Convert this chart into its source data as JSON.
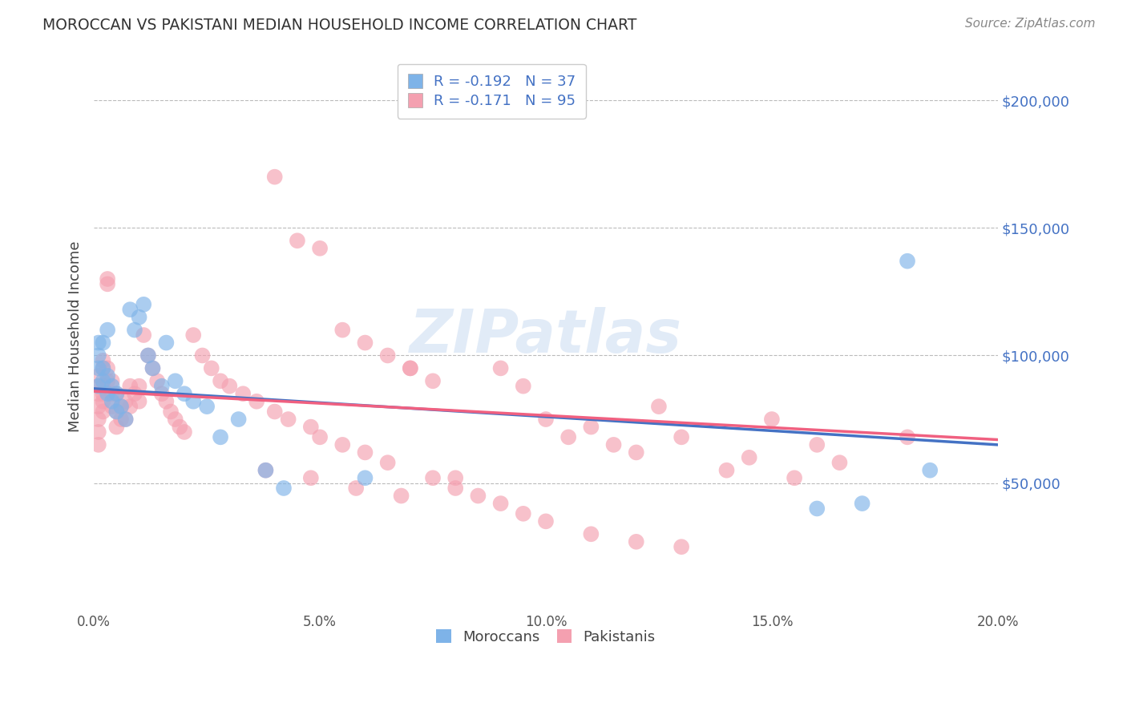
{
  "title": "MOROCCAN VS PAKISTANI MEDIAN HOUSEHOLD INCOME CORRELATION CHART",
  "source": "Source: ZipAtlas.com",
  "ylabel": "Median Household Income",
  "ytick_labels": [
    "$50,000",
    "$100,000",
    "$150,000",
    "$200,000"
  ],
  "ytick_values": [
    50000,
    100000,
    150000,
    200000
  ],
  "xlim": [
    0.0,
    0.2
  ],
  "ylim": [
    0,
    215000
  ],
  "moroccan_color": "#7eb3e8",
  "pakistani_color": "#f4a0b0",
  "moroccan_line_color": "#4472c4",
  "pakistani_line_color": "#f06080",
  "legend_moroccan_label": "R = -0.192   N = 37",
  "legend_pakistani_label": "R = -0.171   N = 95",
  "bottom_legend_moroccan": "Moroccans",
  "bottom_legend_pakistani": "Pakistanis",
  "watermark": "ZIPatlas",
  "moroccan_x": [
    0.001,
    0.001,
    0.001,
    0.001,
    0.002,
    0.002,
    0.002,
    0.003,
    0.003,
    0.003,
    0.004,
    0.004,
    0.005,
    0.005,
    0.006,
    0.007,
    0.008,
    0.009,
    0.01,
    0.011,
    0.012,
    0.013,
    0.015,
    0.016,
    0.018,
    0.02,
    0.022,
    0.025,
    0.028,
    0.032,
    0.038,
    0.042,
    0.06,
    0.16,
    0.17,
    0.18,
    0.185
  ],
  "moroccan_y": [
    88000,
    95000,
    100000,
    105000,
    90000,
    95000,
    105000,
    85000,
    92000,
    110000,
    82000,
    88000,
    78000,
    85000,
    80000,
    75000,
    118000,
    110000,
    115000,
    120000,
    100000,
    95000,
    88000,
    105000,
    90000,
    85000,
    82000,
    80000,
    68000,
    75000,
    55000,
    48000,
    52000,
    40000,
    42000,
    137000,
    55000
  ],
  "pakistani_x": [
    0.001,
    0.001,
    0.001,
    0.001,
    0.001,
    0.001,
    0.001,
    0.002,
    0.002,
    0.002,
    0.002,
    0.002,
    0.002,
    0.003,
    0.003,
    0.003,
    0.003,
    0.004,
    0.004,
    0.004,
    0.005,
    0.005,
    0.005,
    0.006,
    0.006,
    0.007,
    0.007,
    0.008,
    0.008,
    0.009,
    0.01,
    0.01,
    0.011,
    0.012,
    0.013,
    0.014,
    0.015,
    0.016,
    0.017,
    0.018,
    0.019,
    0.02,
    0.022,
    0.024,
    0.026,
    0.028,
    0.03,
    0.033,
    0.036,
    0.04,
    0.043,
    0.048,
    0.05,
    0.055,
    0.06,
    0.065,
    0.07,
    0.075,
    0.08,
    0.09,
    0.095,
    0.1,
    0.105,
    0.11,
    0.115,
    0.12,
    0.125,
    0.13,
    0.14,
    0.145,
    0.15,
    0.155,
    0.16,
    0.165,
    0.04,
    0.045,
    0.05,
    0.055,
    0.06,
    0.065,
    0.07,
    0.075,
    0.08,
    0.085,
    0.09,
    0.095,
    0.1,
    0.11,
    0.12,
    0.13,
    0.038,
    0.048,
    0.058,
    0.068,
    0.18
  ],
  "pakistani_y": [
    92000,
    88000,
    85000,
    80000,
    75000,
    70000,
    65000,
    98000,
    95000,
    88000,
    85000,
    82000,
    78000,
    128000,
    130000,
    95000,
    90000,
    90000,
    85000,
    80000,
    85000,
    78000,
    72000,
    80000,
    75000,
    82000,
    75000,
    88000,
    80000,
    85000,
    88000,
    82000,
    108000,
    100000,
    95000,
    90000,
    85000,
    82000,
    78000,
    75000,
    72000,
    70000,
    108000,
    100000,
    95000,
    90000,
    88000,
    85000,
    82000,
    78000,
    75000,
    72000,
    68000,
    65000,
    62000,
    58000,
    95000,
    90000,
    52000,
    95000,
    88000,
    75000,
    68000,
    72000,
    65000,
    62000,
    80000,
    68000,
    55000,
    60000,
    75000,
    52000,
    65000,
    58000,
    170000,
    145000,
    142000,
    110000,
    105000,
    100000,
    95000,
    52000,
    48000,
    45000,
    42000,
    38000,
    35000,
    30000,
    27000,
    25000,
    55000,
    52000,
    48000,
    45000,
    68000
  ]
}
